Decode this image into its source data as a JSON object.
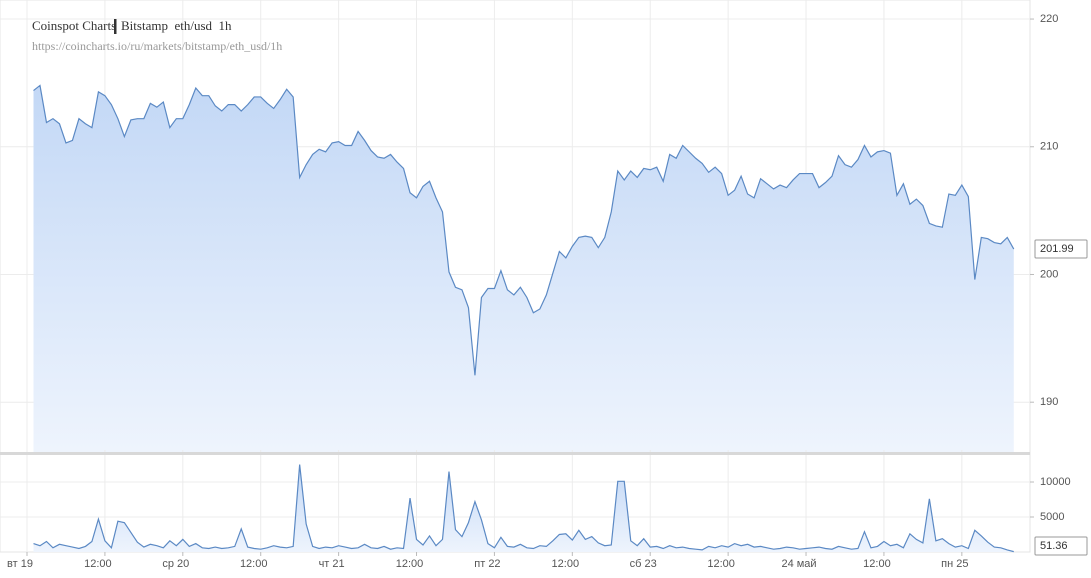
{
  "chart_data": [
    {
      "type": "area",
      "title": "Coinspot Charts",
      "subtitle": "Bitstamp  eth/usd  1h",
      "source": "https://coincharts.io/ru/markets/bitstamp/eth_usd/1h",
      "color": "#5b89c4",
      "fill_top": "#c3d8f6",
      "fill_bottom": "#eef4fd",
      "x": [
        1,
        2,
        3,
        4,
        5,
        6,
        7,
        8,
        9,
        10,
        11,
        12,
        13,
        14,
        15,
        16,
        17,
        18,
        19,
        20,
        21,
        22,
        23,
        24,
        25,
        26,
        27,
        28,
        29,
        30,
        31,
        32,
        33,
        34,
        35,
        36,
        37,
        38,
        39,
        40,
        41,
        42,
        43,
        44,
        45,
        46,
        47,
        48,
        49,
        50,
        51,
        52,
        53,
        54,
        55,
        56,
        57,
        58,
        59,
        60,
        61,
        62,
        63,
        64,
        65,
        66,
        67,
        68,
        69,
        70,
        71,
        72,
        73,
        74,
        75,
        76,
        77,
        78,
        79,
        80,
        81,
        82,
        83,
        84,
        85,
        86,
        87,
        88,
        89,
        90,
        91,
        92,
        93,
        94,
        95,
        96,
        97,
        98,
        99,
        100,
        101,
        102,
        103,
        104,
        105,
        106,
        107,
        108,
        109,
        110,
        111,
        112,
        113,
        114,
        115,
        116,
        117,
        118,
        119,
        120,
        121,
        122,
        123,
        124,
        125,
        126,
        127,
        128,
        129,
        130,
        131,
        132,
        133,
        134,
        135,
        136,
        137,
        138,
        139,
        140,
        141,
        142,
        143,
        144,
        145,
        146,
        147,
        148,
        149,
        150,
        151,
        152
      ],
      "values": [
        214.4,
        214.8,
        211.9,
        212.2,
        211.8,
        210.3,
        210.5,
        212.2,
        211.8,
        211.5,
        214.3,
        214.0,
        213.3,
        212.2,
        210.8,
        212.1,
        212.2,
        212.2,
        213.4,
        213.1,
        213.5,
        211.5,
        212.2,
        212.2,
        213.3,
        214.6,
        214.0,
        214.0,
        213.2,
        212.8,
        213.3,
        213.3,
        212.8,
        213.3,
        213.9,
        213.9,
        213.4,
        213.0,
        213.7,
        214.5,
        213.9,
        207.6,
        208.6,
        209.4,
        209.8,
        209.6,
        210.3,
        210.4,
        210.1,
        210.1,
        211.2,
        210.5,
        209.7,
        209.2,
        209.1,
        209.4,
        208.8,
        208.3,
        206.4,
        206.0,
        206.9,
        207.3,
        206.0,
        204.9,
        200.2,
        199.0,
        198.8,
        197.4,
        192.1,
        198.2,
        198.9,
        198.9,
        200.3,
        198.8,
        198.4,
        199.0,
        198.2,
        197.0,
        197.3,
        198.4,
        200.1,
        201.8,
        201.3,
        202.2,
        202.9,
        203.0,
        202.9,
        202.1,
        202.9,
        204.9,
        208.1,
        207.4,
        208.1,
        207.6,
        208.3,
        208.2,
        208.4,
        207.3,
        209.4,
        209.1,
        210.1,
        209.6,
        209.1,
        208.7,
        208.0,
        208.4,
        207.9,
        206.2,
        206.6,
        207.7,
        206.3,
        206.0,
        207.5,
        207.1,
        206.7,
        207.0,
        206.8,
        207.4,
        207.9,
        207.9,
        207.9,
        206.8,
        207.2,
        207.7,
        209.3,
        208.6,
        208.4,
        209.0,
        210.1,
        209.2,
        209.6,
        209.7,
        209.5,
        206.2,
        207.1,
        205.5,
        205.9,
        205.4,
        204.0,
        203.8,
        203.7,
        206.3,
        206.2,
        207.0,
        206.1,
        199.6,
        202.9,
        202.8,
        202.5,
        202.4,
        202.9,
        201.99
      ],
      "xlim": [
        -4.16,
        154.5
      ],
      "xticks": [
        0,
        12,
        24,
        36,
        48,
        60,
        72,
        84,
        96,
        108,
        120,
        132,
        144
      ],
      "ylim": [
        186.1,
        221.1
      ],
      "yticks": [
        190,
        200,
        210,
        220
      ],
      "grid": true
    },
    {
      "type": "area",
      "color": "#5b89c4",
      "fill_top": "#c3d8f6",
      "fill_bottom": "#eef4fd",
      "x": [
        1,
        2,
        3,
        4,
        5,
        6,
        7,
        8,
        9,
        10,
        11,
        12,
        13,
        14,
        15,
        16,
        17,
        18,
        19,
        20,
        21,
        22,
        23,
        24,
        25,
        26,
        27,
        28,
        29,
        30,
        31,
        32,
        33,
        34,
        35,
        36,
        37,
        38,
        39,
        40,
        41,
        42,
        43,
        44,
        45,
        46,
        47,
        48,
        49,
        50,
        51,
        52,
        53,
        54,
        55,
        56,
        57,
        58,
        59,
        60,
        61,
        62,
        63,
        64,
        65,
        66,
        67,
        68,
        69,
        70,
        71,
        72,
        73,
        74,
        75,
        76,
        77,
        78,
        79,
        80,
        81,
        82,
        83,
        84,
        85,
        86,
        87,
        88,
        89,
        90,
        91,
        92,
        93,
        94,
        95,
        96,
        97,
        98,
        99,
        100,
        101,
        102,
        103,
        104,
        105,
        106,
        107,
        108,
        109,
        110,
        111,
        112,
        113,
        114,
        115,
        116,
        117,
        118,
        119,
        120,
        121,
        122,
        123,
        124,
        125,
        126,
        127,
        128,
        129,
        130,
        131,
        132,
        133,
        134,
        135,
        136,
        137,
        138,
        139,
        140,
        141,
        142,
        143,
        144,
        145,
        146,
        147,
        148,
        149,
        150,
        151,
        152
      ],
      "values": [
        1200,
        900,
        1500,
        600,
        1100,
        900,
        700,
        500,
        800,
        1500,
        4700,
        1600,
        600,
        4400,
        4200,
        2800,
        1400,
        700,
        1100,
        900,
        600,
        1600,
        900,
        1800,
        800,
        1200,
        600,
        500,
        700,
        500,
        600,
        800,
        3300,
        700,
        500,
        400,
        600,
        900,
        700,
        600,
        800,
        12500,
        4000,
        800,
        500,
        700,
        600,
        900,
        700,
        500,
        600,
        1100,
        600,
        500,
        800,
        400,
        600,
        500,
        7700,
        1800,
        1000,
        2300,
        900,
        1800,
        11500,
        3200,
        2200,
        4200,
        7200,
        4600,
        1200,
        600,
        2100,
        800,
        700,
        1100,
        600,
        500,
        900,
        800,
        1600,
        2500,
        2600,
        1700,
        3100,
        1800,
        2200,
        1300,
        900,
        1000,
        10100,
        10100,
        1600,
        900,
        1900,
        700,
        800,
        500,
        900,
        600,
        700,
        500,
        400,
        300,
        800,
        600,
        900,
        700,
        1200,
        900,
        1100,
        700,
        800,
        600,
        400,
        500,
        700,
        600,
        400,
        500,
        600,
        700,
        500,
        400,
        800,
        600,
        400,
        500,
        2900,
        600,
        800,
        1500,
        900,
        1100,
        600,
        2600,
        1800,
        1300,
        7600,
        1600,
        1900,
        1200,
        700,
        900,
        500,
        3100,
        2300,
        1400,
        700,
        600,
        300,
        51.36
      ],
      "xlim": [
        -4.16,
        154.5
      ],
      "xticks": [
        {
          "value": 0,
          "label": "вт 19"
        },
        {
          "value": 12,
          "label": "12:00"
        },
        {
          "value": 24,
          "label": "ср 20"
        },
        {
          "value": 36,
          "label": "12:00"
        },
        {
          "value": 48,
          "label": "чт 21"
        },
        {
          "value": 60,
          "label": "12:00"
        },
        {
          "value": 72,
          "label": "пт 22"
        },
        {
          "value": 84,
          "label": "12:00"
        },
        {
          "value": 96,
          "label": "сб 23"
        },
        {
          "value": 108,
          "label": "12:00"
        },
        {
          "value": 120,
          "label": "24 май"
        },
        {
          "value": 132,
          "label": "12:00"
        },
        {
          "value": 144,
          "label": "пн 25"
        }
      ],
      "ylim": [
        0,
        13860
      ],
      "yticks": [
        5000,
        10000
      ],
      "grid": true
    }
  ]
}
